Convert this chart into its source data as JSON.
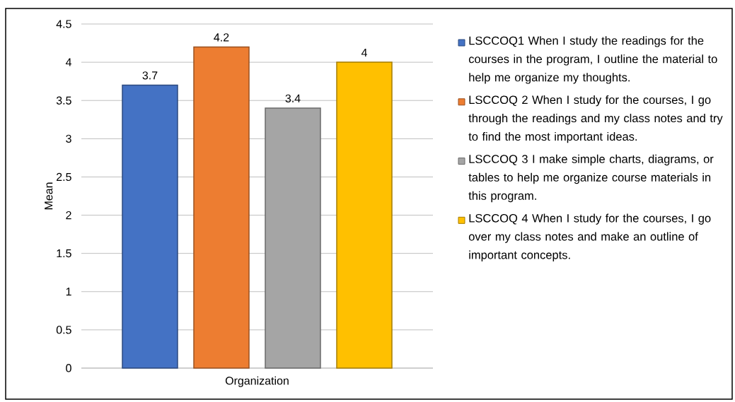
{
  "chart_data": {
    "type": "bar",
    "ylabel": "Mean",
    "categories": [
      "Organization"
    ],
    "series": [
      {
        "name": "LSCCOQ1 When I study the readings for the courses in the program, I outline the material to help me organize my thoughts.",
        "color": "#4472c4",
        "values": [
          3.7
        ]
      },
      {
        "name": "LSCCOQ 2 When I study for the courses, I go through the readings and my class notes and try to find the most important ideas.",
        "color": "#ed7d31",
        "values": [
          4.2
        ]
      },
      {
        "name": "LSCCOQ 3 I make simple charts, diagrams, or tables to help me organize course materials in this program.",
        "color": "#a5a5a5",
        "values": [
          3.4
        ]
      },
      {
        "name": "LSCCOQ 4 When I study for the courses, I go over my class notes and make an outline of important concepts.",
        "color": "#ffc000",
        "values": [
          4
        ]
      }
    ],
    "ylim": [
      0,
      4.5
    ],
    "yticks": [
      0,
      0.5,
      1,
      1.5,
      2,
      2.5,
      3,
      3.5,
      4,
      4.5
    ],
    "grid": "y",
    "legend": "right",
    "data_labels": true
  }
}
